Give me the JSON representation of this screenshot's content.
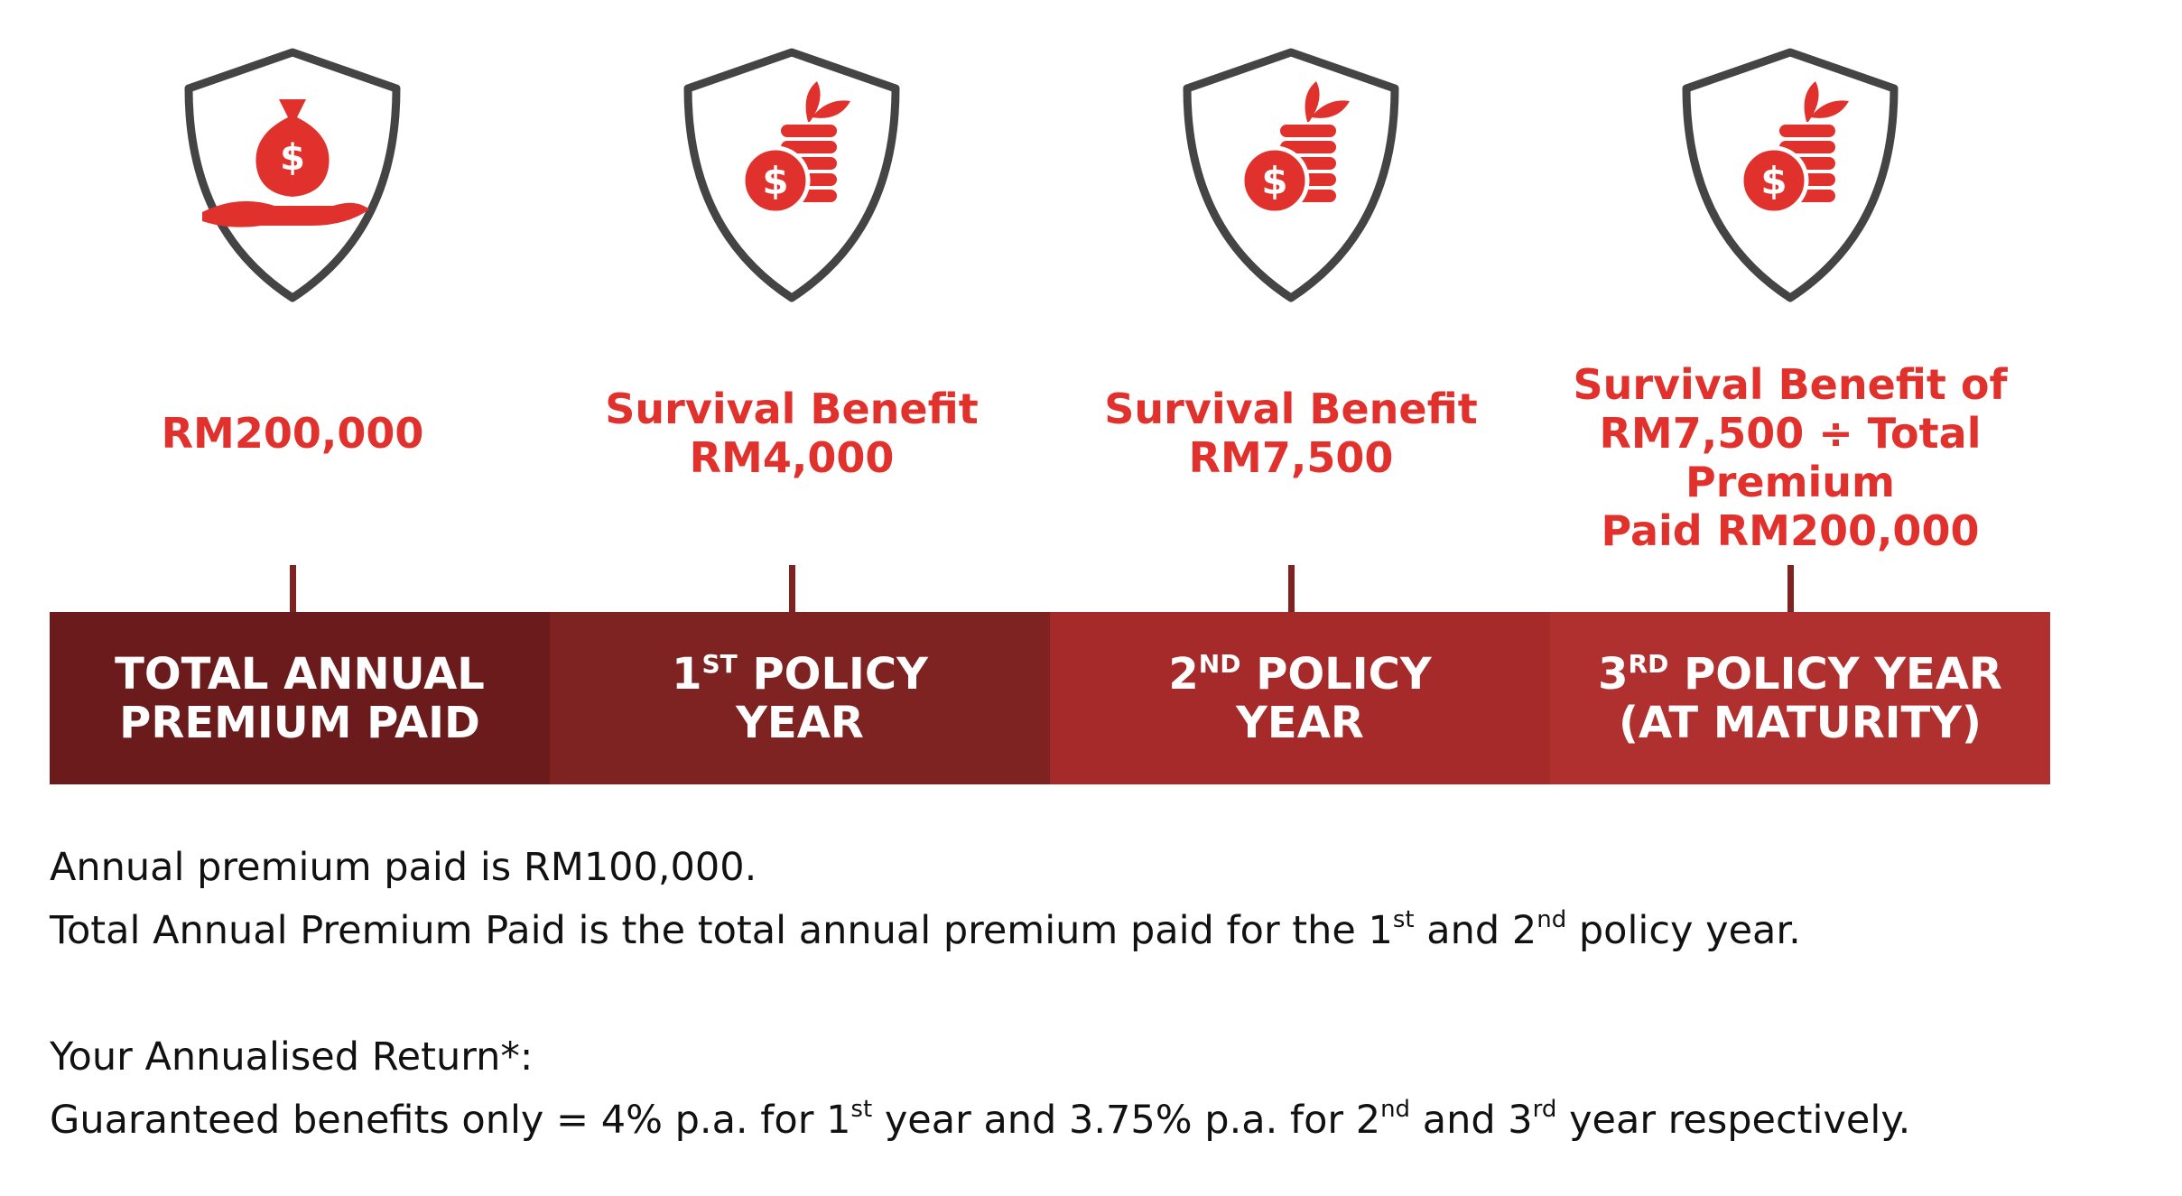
{
  "currency_symbol": "$",
  "columns": [
    {
      "icon": "money-bag",
      "amount": [
        "RM200,000"
      ],
      "stage": [
        [
          {
            "text": "TOTAL ANNUAL",
            "sup": false
          }
        ],
        [
          {
            "text": "PREMIUM PAID",
            "sup": false
          }
        ]
      ],
      "color": "#6b1b1b"
    },
    {
      "icon": "coins",
      "amount": [
        "Survival Benefit",
        "RM4,000"
      ],
      "stage": [
        [
          {
            "text": "1",
            "sup": false
          },
          {
            "text": "ST",
            "sup": true
          },
          {
            "text": " POLICY",
            "sup": false
          }
        ],
        [
          {
            "text": "YEAR",
            "sup": false
          }
        ]
      ],
      "color": "#7e2222"
    },
    {
      "icon": "coins",
      "amount": [
        "Survival Benefit",
        "RM7,500"
      ],
      "stage": [
        [
          {
            "text": "2",
            "sup": false
          },
          {
            "text": "ND",
            "sup": true
          },
          {
            "text": " POLICY",
            "sup": false
          }
        ],
        [
          {
            "text": "YEAR",
            "sup": false
          }
        ]
      ],
      "color": "#a72a2a"
    },
    {
      "icon": "coins",
      "amount": [
        "Survival Benefit of",
        "RM7,500 ÷ Total Premium",
        "Paid RM200,000"
      ],
      "stage": [
        [
          {
            "text": "3",
            "sup": false
          },
          {
            "text": "RD",
            "sup": true
          },
          {
            "text": " POLICY YEAR",
            "sup": false
          }
        ],
        [
          {
            "text": "(AT MATURITY)",
            "sup": false
          }
        ]
      ],
      "color": "#b0302f"
    }
  ],
  "notes": [
    [
      {
        "text": "Annual premium paid is RM100,000.",
        "sup": false
      }
    ],
    [
      {
        "text": "Total Annual Premium Paid is the total annual premium paid for the 1",
        "sup": false
      },
      {
        "text": "st",
        "sup": true
      },
      {
        "text": " and 2",
        "sup": false
      },
      {
        "text": "nd",
        "sup": true
      },
      {
        "text": " policy year.",
        "sup": false
      }
    ],
    [],
    [
      {
        "text": "Your Annualised Return*:",
        "sup": false
      }
    ],
    [
      {
        "text": "Guaranteed benefits only = 4% p.a. for 1",
        "sup": false
      },
      {
        "text": "st",
        "sup": true
      },
      {
        "text": " year and 3.75% p.a. for 2",
        "sup": false
      },
      {
        "text": "nd",
        "sup": true
      },
      {
        "text": " and 3",
        "sup": false
      },
      {
        "text": "rd",
        "sup": true
      },
      {
        "text": " year respectively.",
        "sup": false
      }
    ]
  ]
}
